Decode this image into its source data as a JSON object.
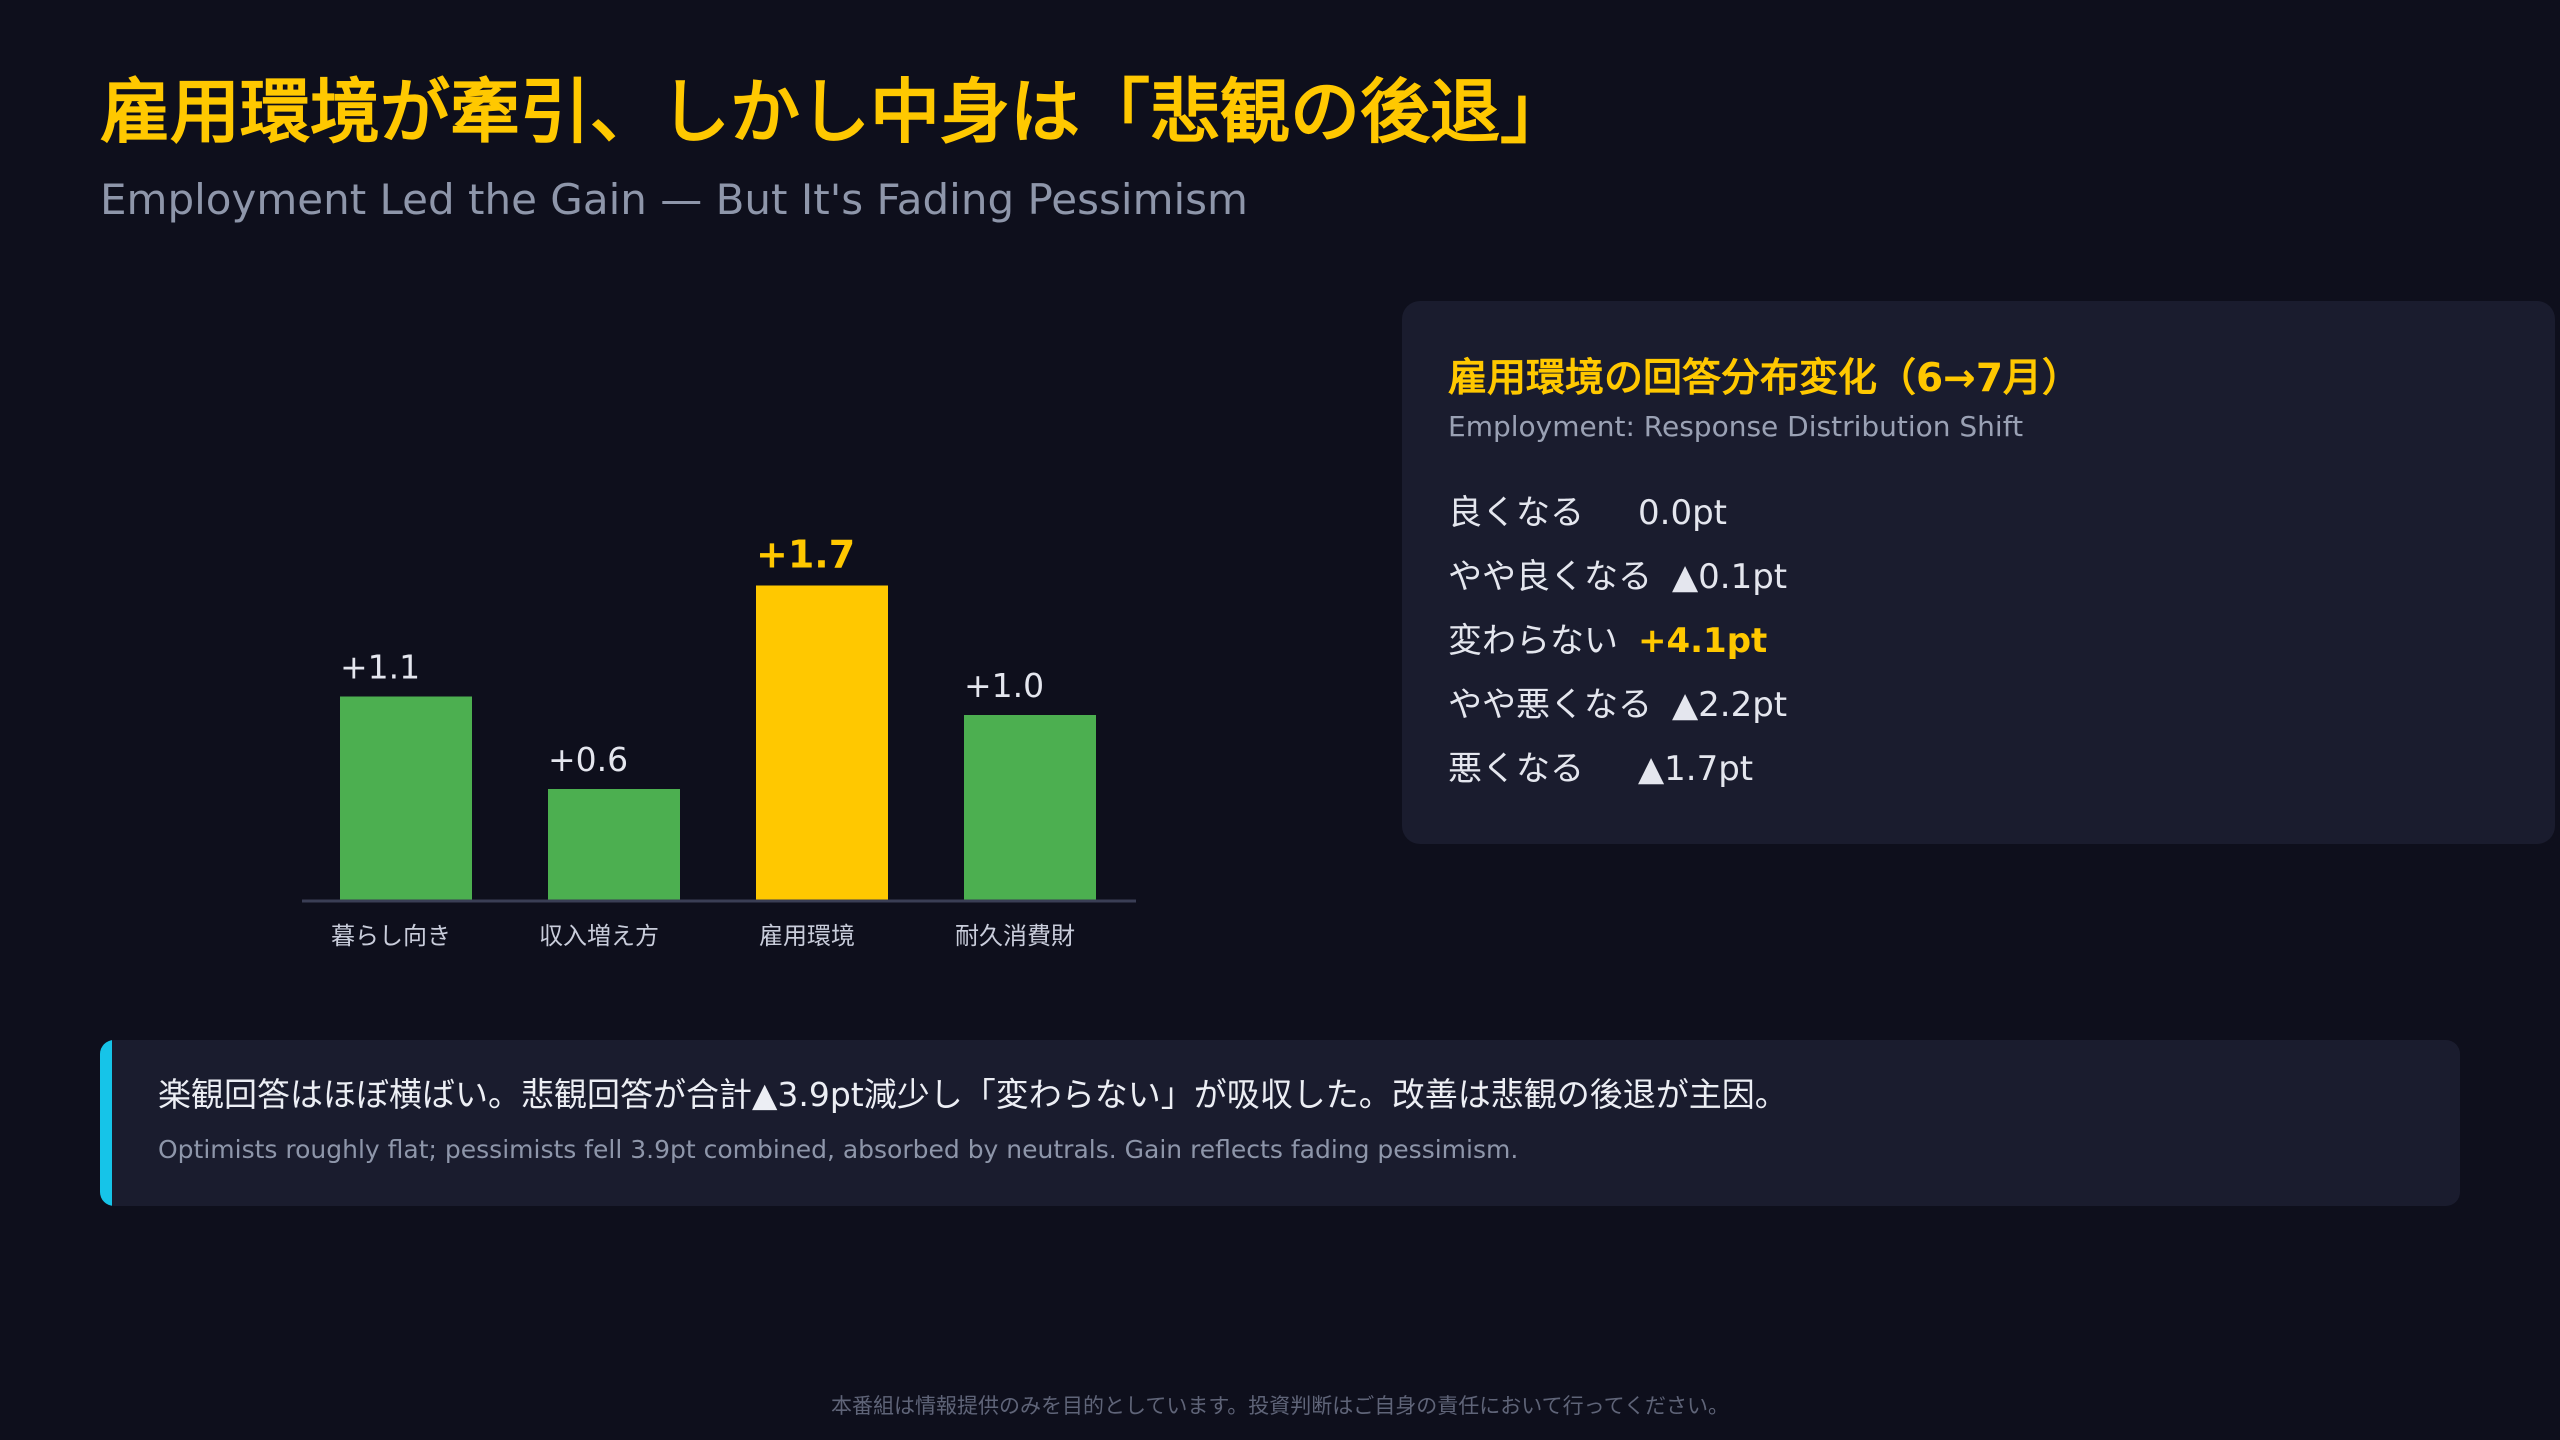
{
  "header": {
    "title": "雇用環境が牽引、しかし中身は「悲観の後退」",
    "subtitle": "Employment Led the Gain — But It's Fading Pessimism"
  },
  "chart_data": {
    "type": "bar",
    "categories": [
      "暮らし向き",
      "収入増え方",
      "雇用環境",
      "耐久消費財"
    ],
    "values": [
      1.1,
      0.6,
      1.7,
      1.0
    ],
    "value_labels": [
      "+1.1",
      "+0.6",
      "+1.7",
      "+1.0"
    ],
    "highlight_index": 2,
    "title": "",
    "xlabel": "",
    "ylabel": "",
    "ylim": [
      0,
      2.0
    ],
    "grid": false,
    "colors": {
      "bar": "#4caf50",
      "highlight": "#ffc800",
      "axis": "#3a3e55",
      "label": "#e4e6ee",
      "tick": "#c9cddb"
    }
  },
  "distribution": {
    "title": "雇用環境の回答分布変化（6→7月）",
    "subtitle": "Employment: Response Distribution Shift",
    "rows": [
      {
        "label": "良くなる",
        "value": "0.0pt",
        "highlight": false
      },
      {
        "label": "やや良くなる",
        "value": "▲0.1pt",
        "highlight": false
      },
      {
        "label": "変わらない",
        "value": "+4.1pt",
        "highlight": true
      },
      {
        "label": "やや悪くなる",
        "value": "▲2.2pt",
        "highlight": false
      },
      {
        "label": "悪くなる",
        "value": "▲1.7pt",
        "highlight": false
      }
    ]
  },
  "callout": {
    "text_ja": "楽観回答はほぼ横ばい。悲観回答が合計▲3.9pt減少し「変わらない」が吸収した。改善は悲観の後退が主因。",
    "text_en": "Optimists roughly flat; pessimists fell 3.9pt combined, absorbed by neutrals. Gain reflects fading pessimism.",
    "accent_color": "#16c4e8"
  },
  "footer": {
    "disclaimer": "本番組は情報提供のみを目的としています。投資判断はご自身の責任において行ってください。"
  }
}
